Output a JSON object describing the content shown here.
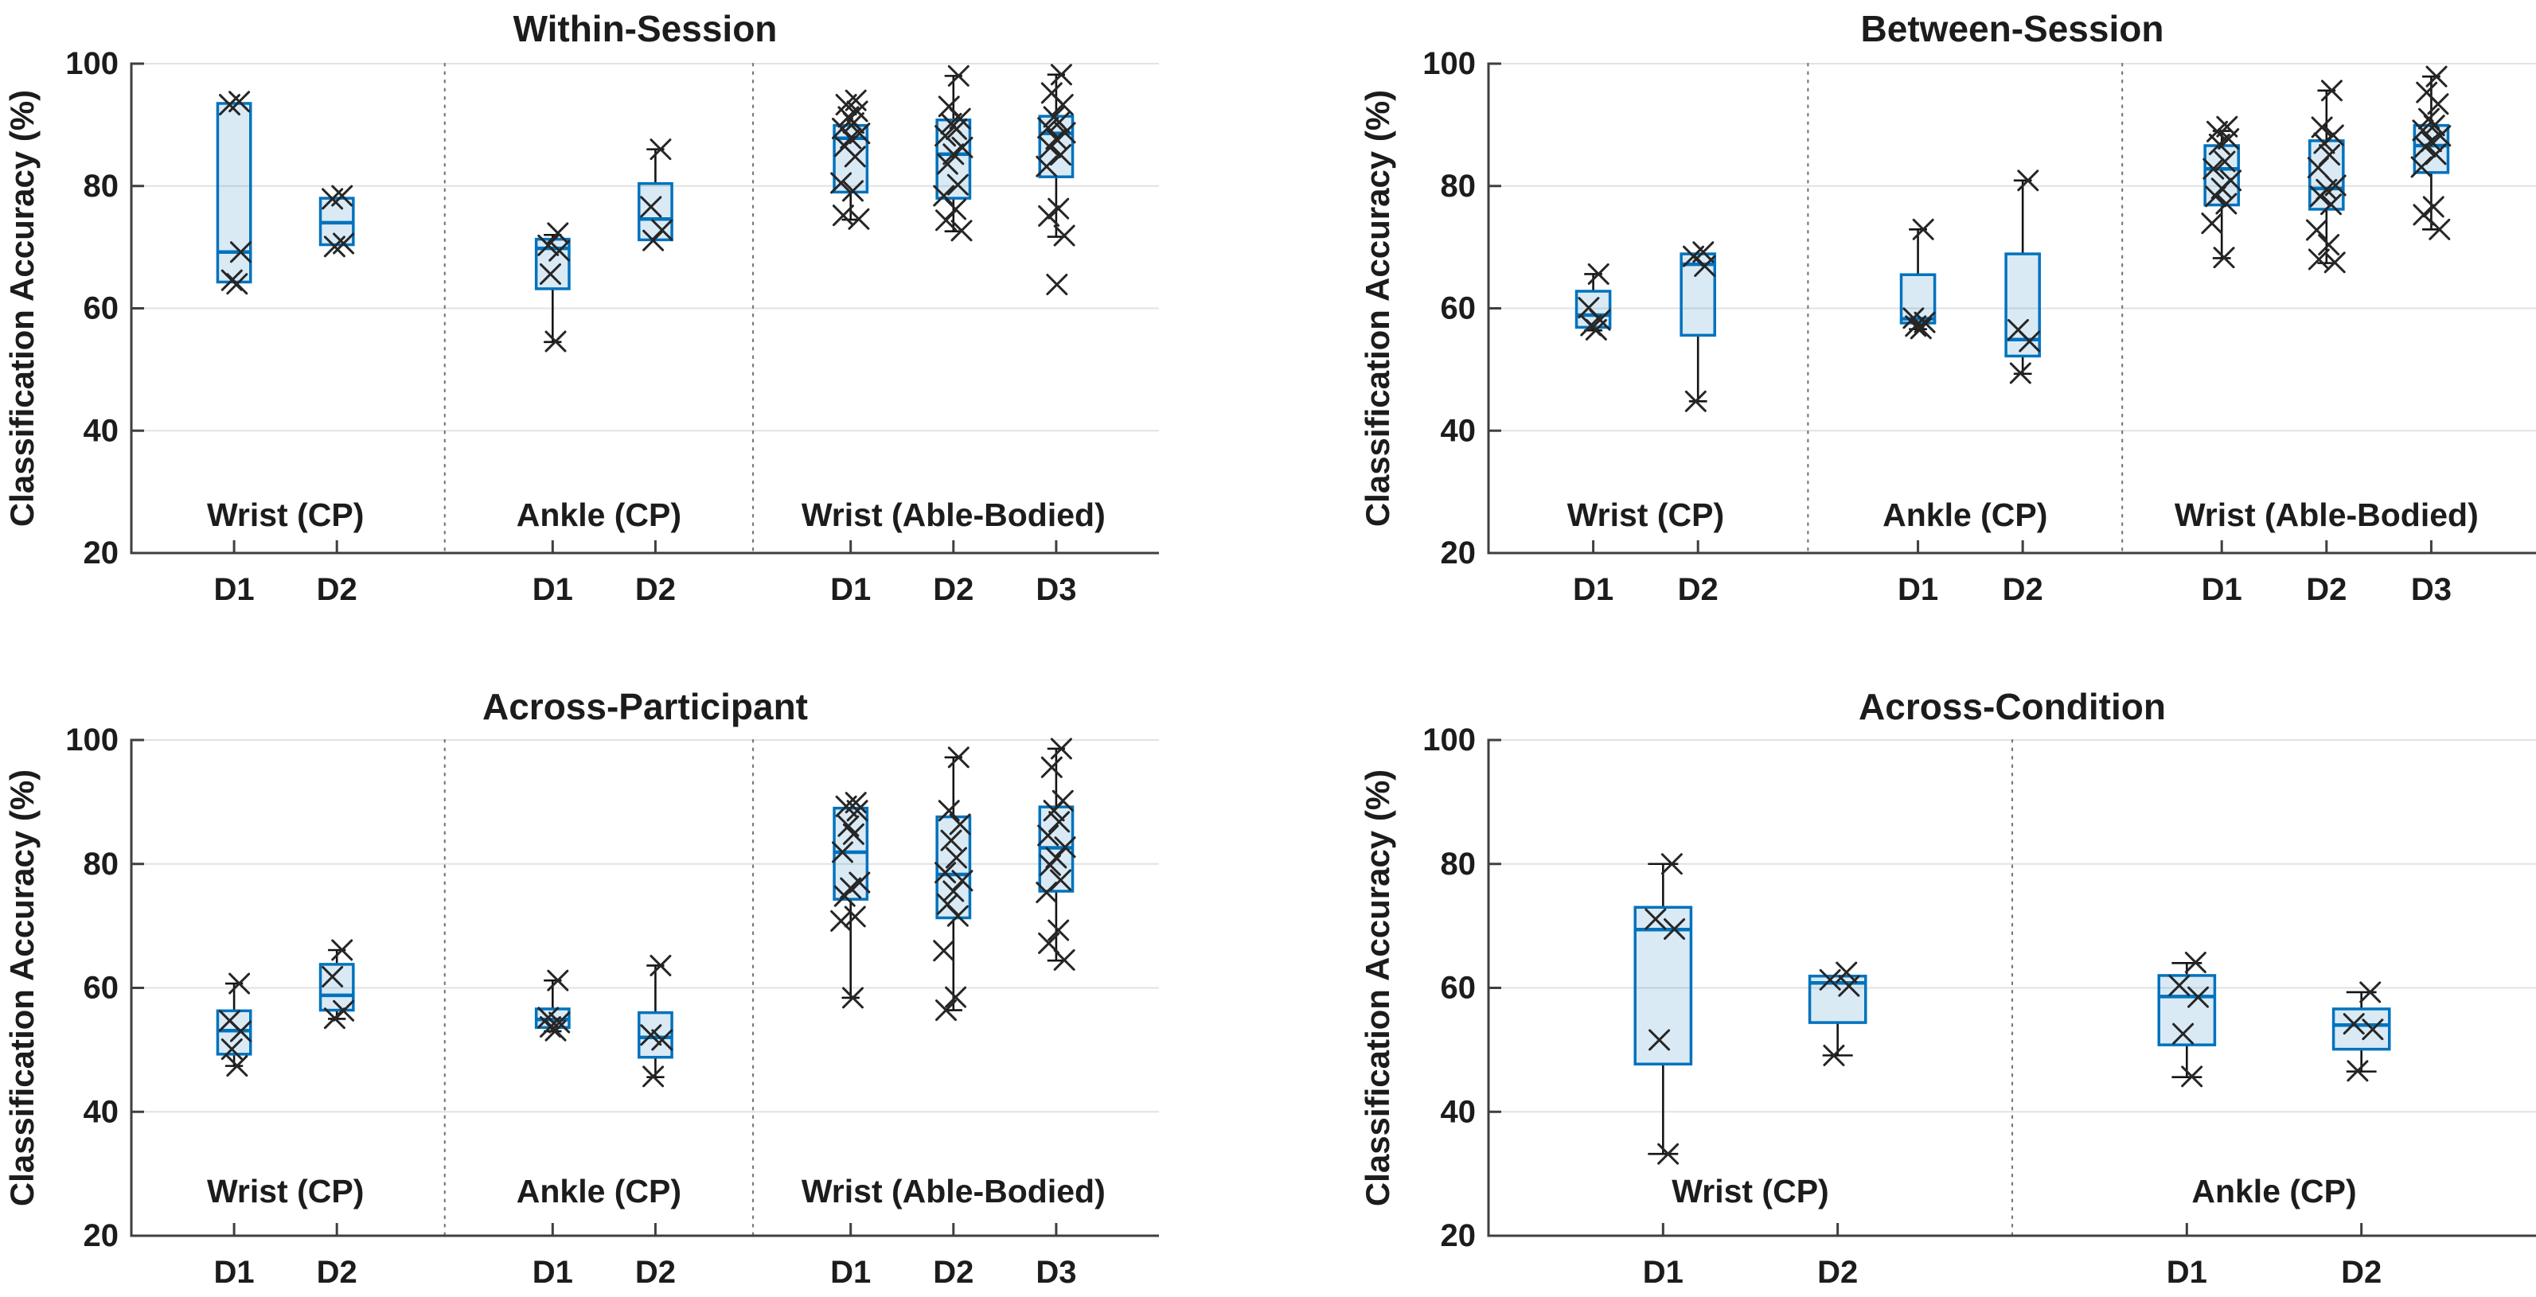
{
  "figure": {
    "background": "#ffffff",
    "box_edge_color": "#0072BD",
    "box_fill_color": "rgba(0,114,189,0.15)",
    "median_color": "#0072BD",
    "whisker_color": "#141414",
    "marker_color": "#262626",
    "grid_color": "#e2e2e2",
    "axis_color": "#3f3f3f",
    "text_color": "#1c1c1c",
    "separator_color": "#7a7a7a"
  },
  "chart_data": [
    {
      "type": "box",
      "title": "Within-Session",
      "ylabel": "Classification Accuracy (%)",
      "ylim": [
        20,
        100
      ],
      "yticks": [
        20,
        40,
        60,
        80,
        100
      ],
      "gridlines": [
        40,
        60,
        80,
        100
      ],
      "xlim": [
        0,
        10
      ],
      "separators": [
        3.05,
        6.05
      ],
      "grid": "horizontal",
      "legend": "none",
      "groups": [
        {
          "label": "Wrist (CP)",
          "label_pos": 1.5,
          "boxes": [
            {
              "tick": "D1",
              "pos": 1,
              "whisker_low": 64.0,
              "q1": 64.3,
              "median": 69.2,
              "q3": 93.5,
              "whisker_high": 93.5,
              "points": [
                93.8,
                93.3,
                69.2,
                64.6,
                64.0
              ]
            },
            {
              "tick": "D2",
              "pos": 2,
              "whisker_low": 70.2,
              "q1": 70.4,
              "median": 74.0,
              "q3": 78.0,
              "whisker_high": 78.2,
              "points": [
                78.4,
                77.9,
                70.6,
                70.1
              ]
            }
          ]
        },
        {
          "label": "Ankle (CP)",
          "label_pos": 4.55,
          "boxes": [
            {
              "tick": "D1",
              "pos": 4.1,
              "whisker_low": 54.5,
              "q1": 63.2,
              "median": 69.8,
              "q3": 71.3,
              "whisker_high": 72.0,
              "points": [
                72.3,
                70.3,
                69.4,
                65.6,
                54.6
              ]
            },
            {
              "tick": "D2",
              "pos": 5.1,
              "whisker_low": 71.0,
              "q1": 71.2,
              "median": 74.6,
              "q3": 80.4,
              "whisker_high": 86.0,
              "points": [
                86.0,
                76.6,
                72.8,
                71.1
              ]
            }
          ]
        },
        {
          "label": "Wrist (Able-Bodied)",
          "label_pos": 8,
          "boxes": [
            {
              "tick": "D1",
              "pos": 7,
              "whisker_low": 74.5,
              "q1": 79.0,
              "median": 87.8,
              "q3": 89.9,
              "whisker_high": 89.9,
              "points": [
                94.0,
                93.3,
                92.2,
                91.3,
                90.3,
                89.4,
                88.6,
                87.8,
                86.5,
                84.8,
                80.5,
                79.2,
                75.2,
                74.6
              ]
            },
            {
              "tick": "D2",
              "pos": 8,
              "whisker_low": 72.6,
              "q1": 78.0,
              "median": 85.2,
              "q3": 90.8,
              "whisker_high": 98.0,
              "points": [
                98.0,
                93.0,
                91.0,
                90.2,
                89.3,
                88.2,
                86.3,
                85.2,
                83.6,
                80.2,
                78.4,
                76.2,
                74.4,
                72.7
              ]
            },
            {
              "tick": "D3",
              "pos": 9,
              "whisker_low": 71.7,
              "q1": 81.5,
              "median": 88.6,
              "q3": 91.4,
              "whisker_high": 98.2,
              "points": [
                98.2,
                95.2,
                93.3,
                91.3,
                90.4,
                89.5,
                88.7,
                87.7,
                86.3,
                85.1,
                83.2,
                76.3,
                75.1,
                71.9,
                63.9
              ]
            }
          ]
        }
      ]
    },
    {
      "type": "box",
      "title": "Between-Session",
      "ylabel": "Classification Accuracy (%)",
      "ylim": [
        20,
        100
      ],
      "yticks": [
        20,
        40,
        60,
        80,
        100
      ],
      "gridlines": [
        40,
        60,
        80,
        100
      ],
      "xlim": [
        0,
        10
      ],
      "separators": [
        3.05,
        6.05
      ],
      "grid": "horizontal",
      "legend": "none",
      "groups": [
        {
          "label": "Wrist (CP)",
          "label_pos": 1.5,
          "boxes": [
            {
              "tick": "D1",
              "pos": 1,
              "whisker_low": 56.4,
              "q1": 56.9,
              "median": 58.9,
              "q3": 62.8,
              "whisker_high": 65.6,
              "points": [
                65.6,
                60.1,
                58.1,
                57.2,
                56.5
              ]
            },
            {
              "tick": "D2",
              "pos": 2,
              "whisker_low": 44.8,
              "q1": 55.6,
              "median": 67.2,
              "q3": 68.9,
              "whisker_high": 69.1,
              "points": [
                69.2,
                68.5,
                66.9,
                44.8
              ]
            }
          ]
        },
        {
          "label": "Ankle (CP)",
          "label_pos": 4.55,
          "boxes": [
            {
              "tick": "D1",
              "pos": 4.1,
              "whisker_low": 56.6,
              "q1": 57.6,
              "median": 58.3,
              "q3": 65.5,
              "whisker_high": 72.9,
              "points": [
                72.9,
                58.4,
                57.7,
                57.1,
                56.7
              ]
            },
            {
              "tick": "D2",
              "pos": 5.1,
              "whisker_low": 49.3,
              "q1": 52.2,
              "median": 54.9,
              "q3": 68.9,
              "whisker_high": 80.9,
              "points": [
                80.9,
                56.5,
                54.6,
                49.4
              ]
            }
          ]
        },
        {
          "label": "Wrist (Able-Bodied)",
          "label_pos": 8,
          "boxes": [
            {
              "tick": "D1",
              "pos": 7,
              "whisker_low": 68.2,
              "q1": 76.9,
              "median": 82.8,
              "q3": 86.6,
              "whisker_high": 89.0,
              "points": [
                89.7,
                88.9,
                87.7,
                86.8,
                84.0,
                82.8,
                80.9,
                79.6,
                78.3,
                77.1,
                73.9,
                68.3
              ]
            },
            {
              "tick": "D2",
              "pos": 8,
              "whisker_low": 67.4,
              "q1": 76.2,
              "median": 79.6,
              "q3": 87.4,
              "whisker_high": 95.6,
              "points": [
                95.6,
                89.6,
                88.3,
                87.0,
                85.1,
                83.0,
                80.1,
                79.4,
                78.3,
                77.0,
                72.8,
                70.4,
                68.0,
                67.5
              ]
            },
            {
              "tick": "D3",
              "pos": 9,
              "whisker_low": 72.9,
              "q1": 82.2,
              "median": 86.6,
              "q3": 89.9,
              "whisker_high": 97.9,
              "points": [
                97.9,
                95.3,
                93.4,
                91.0,
                89.9,
                89.1,
                88.2,
                87.3,
                86.4,
                85.2,
                83.1,
                76.6,
                75.3,
                72.9
              ]
            }
          ]
        }
      ]
    },
    {
      "type": "box",
      "title": "Across-Participant",
      "ylabel": "Classification Accuracy (%)",
      "ylim": [
        20,
        100
      ],
      "yticks": [
        20,
        40,
        60,
        80,
        100
      ],
      "gridlines": [
        40,
        60,
        80,
        100
      ],
      "xlim": [
        0,
        10
      ],
      "separators": [
        3.05,
        6.05
      ],
      "grid": "horizontal",
      "legend": "none",
      "groups": [
        {
          "label": "Wrist (CP)",
          "label_pos": 1.5,
          "boxes": [
            {
              "tick": "D1",
              "pos": 1,
              "whisker_low": 47.4,
              "q1": 49.3,
              "median": 53.1,
              "q3": 56.3,
              "whisker_high": 60.7,
              "points": [
                60.7,
                54.7,
                53.0,
                50.1,
                47.4
              ]
            },
            {
              "tick": "D2",
              "pos": 2,
              "whisker_low": 55.0,
              "q1": 56.4,
              "median": 58.8,
              "q3": 63.8,
              "whisker_high": 66.1,
              "points": [
                66.1,
                61.8,
                56.3,
                55.1
              ]
            }
          ]
        },
        {
          "label": "Ankle (CP)",
          "label_pos": 4.55,
          "boxes": [
            {
              "tick": "D1",
              "pos": 4.1,
              "whisker_low": 53.0,
              "q1": 53.6,
              "median": 54.9,
              "q3": 56.6,
              "whisker_high": 61.2,
              "points": [
                61.2,
                55.2,
                54.4,
                53.7,
                53.1
              ]
            },
            {
              "tick": "D2",
              "pos": 5.1,
              "whisker_low": 45.6,
              "q1": 48.8,
              "median": 52.0,
              "q3": 56.0,
              "whisker_high": 63.6,
              "points": [
                63.6,
                52.4,
                51.6,
                45.7
              ]
            }
          ]
        },
        {
          "label": "Wrist (Able-Bodied)",
          "label_pos": 8,
          "boxes": [
            {
              "tick": "D1",
              "pos": 7,
              "whisker_low": 58.4,
              "q1": 74.3,
              "median": 81.9,
              "q3": 89.0,
              "whisker_high": 89.0,
              "points": [
                89.9,
                89.3,
                88.6,
                86.1,
                84.8,
                81.9,
                77.0,
                76.1,
                74.8,
                71.5,
                70.8,
                58.4
              ]
            },
            {
              "tick": "D2",
              "pos": 8,
              "whisker_low": 56.4,
              "q1": 71.3,
              "median": 78.3,
              "q3": 87.6,
              "whisker_high": 97.2,
              "points": [
                97.2,
                88.6,
                86.4,
                83.8,
                81.0,
                78.6,
                77.3,
                75.6,
                73.5,
                71.6,
                66.0,
                58.5,
                56.4
              ]
            },
            {
              "tick": "D3",
              "pos": 9,
              "whisker_low": 64.4,
              "q1": 75.6,
              "median": 82.6,
              "q3": 89.2,
              "whisker_high": 98.6,
              "points": [
                98.6,
                95.6,
                90.2,
                88.6,
                86.8,
                84.6,
                82.7,
                81.0,
                79.8,
                77.4,
                75.4,
                69.3,
                67.2,
                64.5
              ]
            }
          ]
        }
      ]
    },
    {
      "type": "box",
      "title": "Across-Condition",
      "ylabel": "Classification Accuracy (%)",
      "ylim": [
        20,
        100
      ],
      "yticks": [
        20,
        40,
        60,
        80,
        100
      ],
      "gridlines": [
        40,
        60,
        80,
        100
      ],
      "xlim": [
        0,
        6
      ],
      "separators": [
        3
      ],
      "grid": "horizontal",
      "legend": "none",
      "groups": [
        {
          "label": "Wrist (CP)",
          "label_pos": 1.5,
          "boxes": [
            {
              "tick": "D1",
              "pos": 1,
              "whisker_low": 33.2,
              "q1": 47.7,
              "median": 69.4,
              "q3": 73.0,
              "whisker_high": 80.0,
              "points": [
                80.0,
                71.1,
                69.5,
                51.6,
                33.2
              ]
            },
            {
              "tick": "D2",
              "pos": 2,
              "whisker_low": 49.1,
              "q1": 54.4,
              "median": 60.8,
              "q3": 61.9,
              "whisker_high": 62.2,
              "points": [
                62.5,
                61.3,
                60.3,
                49.1
              ]
            }
          ]
        },
        {
          "label": "Ankle (CP)",
          "label_pos": 4.5,
          "boxes": [
            {
              "tick": "D1",
              "pos": 4,
              "whisker_low": 45.6,
              "q1": 50.8,
              "median": 58.6,
              "q3": 62.0,
              "whisker_high": 64.0,
              "points": [
                64.1,
                60.4,
                58.5,
                52.6,
                45.7
              ]
            },
            {
              "tick": "D2",
              "pos": 5,
              "whisker_low": 46.5,
              "q1": 50.1,
              "median": 54.0,
              "q3": 56.6,
              "whisker_high": 59.3,
              "points": [
                59.3,
                54.2,
                53.3,
                46.6
              ]
            }
          ]
        }
      ]
    }
  ]
}
